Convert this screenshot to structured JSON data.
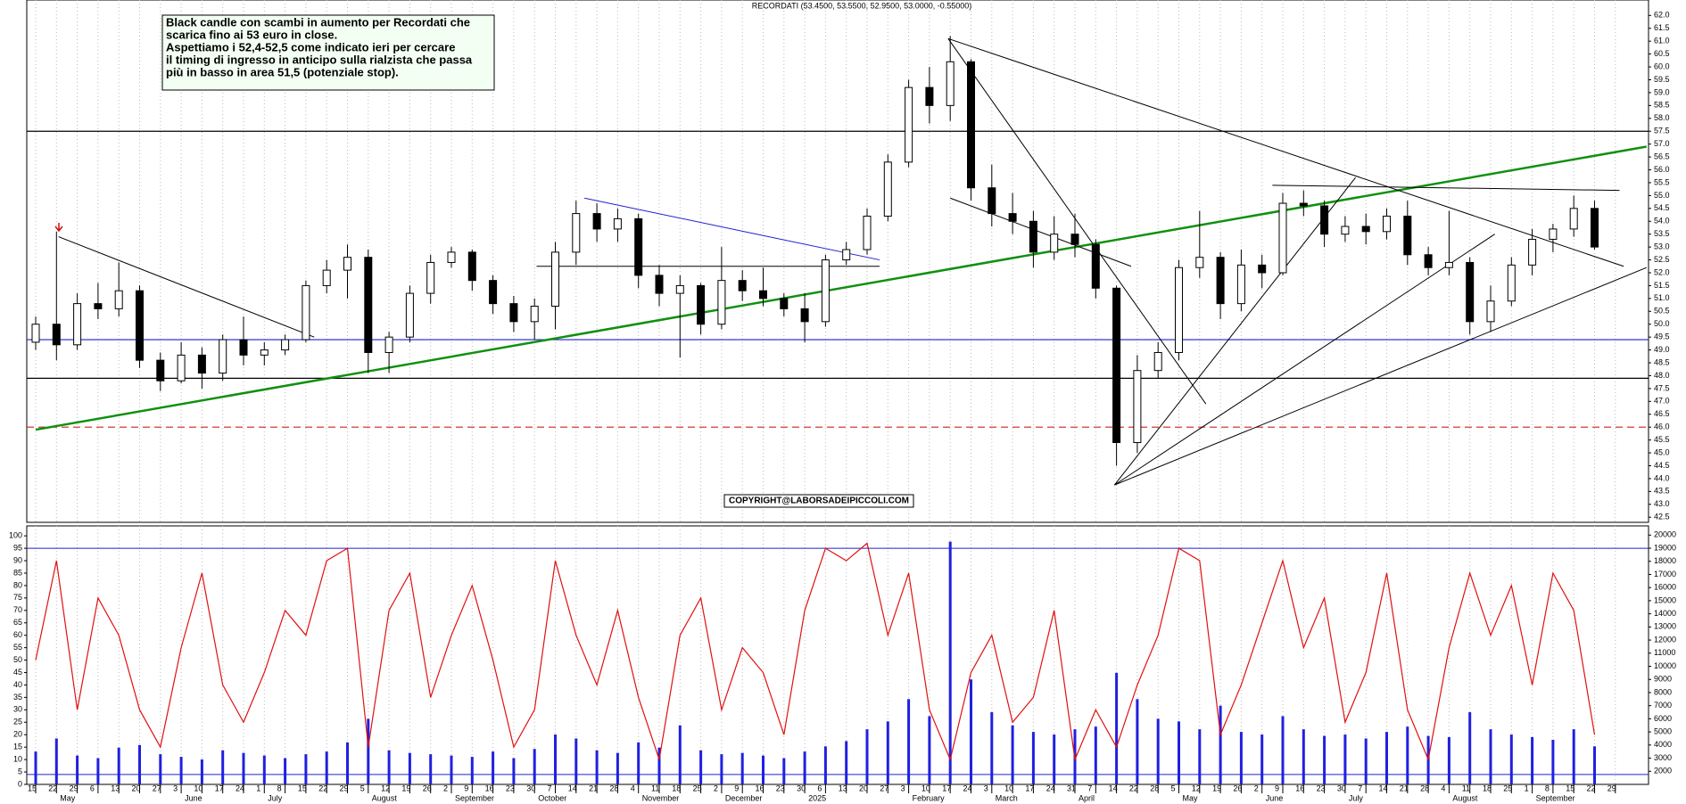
{
  "chart_data": [
    {
      "type": "candlestick",
      "title": "RECORDATI (53.4500, 53.5500, 52.9500, 53.0000, -0.55000)",
      "annotation": [
        "Black candle con scambi in aumento per Recordati che",
        "scarica fino ai 53 euro in close.",
        "Aspettiamo i 52,4-52,5 come indicato ieri per cercare",
        "il timing di ingresso in anticipo sulla rialzista che passa",
        "più in basso in area 51,5 (potenziale stop)."
      ],
      "copyright": "COPYRIGHT@LABORSADEIPICCOLI.COM",
      "categories": [
        "15",
        "22",
        "29",
        "6",
        "13",
        "20",
        "27",
        "3",
        "10",
        "17",
        "24",
        "1",
        "8",
        "15",
        "22",
        "29",
        "5",
        "12",
        "19",
        "26",
        "2",
        "9",
        "16",
        "23",
        "30",
        "7",
        "14",
        "21",
        "28",
        "4",
        "11",
        "18",
        "25",
        "2",
        "9",
        "16",
        "23",
        "30",
        "6",
        "13",
        "20",
        "27",
        "3",
        "10",
        "17",
        "24",
        "3",
        "10",
        "17",
        "24",
        "31",
        "7",
        "14",
        "22",
        "28",
        "5",
        "12",
        "19",
        "26",
        "2",
        "9",
        "16",
        "23",
        "30",
        "7",
        "14",
        "21",
        "28",
        "4",
        "11",
        "18",
        "25",
        "1",
        "8",
        "15",
        "22",
        "29"
      ],
      "months": [
        null,
        "May",
        null,
        null,
        null,
        null,
        null,
        "June",
        null,
        null,
        null,
        "July",
        null,
        null,
        null,
        null,
        "August",
        null,
        null,
        null,
        "September",
        null,
        null,
        null,
        "October",
        null,
        null,
        null,
        null,
        "November",
        null,
        null,
        null,
        "December",
        null,
        null,
        null,
        "2025",
        null,
        null,
        null,
        null,
        "February",
        null,
        null,
        null,
        "March",
        null,
        null,
        null,
        "April",
        null,
        null,
        null,
        null,
        "May",
        null,
        null,
        null,
        "June",
        null,
        null,
        null,
        "July",
        null,
        null,
        null,
        null,
        "August",
        null,
        null,
        null,
        "September",
        null,
        null,
        null,
        null
      ],
      "open": [
        49.3,
        50,
        49.2,
        50.8,
        50.6,
        51.3,
        48.6,
        47.8,
        48.8,
        48.1,
        49.4,
        48.8,
        49.0,
        49.4,
        51.5,
        52.1,
        52.6,
        48.9,
        49.5,
        51.2,
        52.4,
        52.8,
        51.7,
        50.8,
        50.1,
        50.7,
        52.8,
        54.3,
        53.7,
        54.1,
        51.9,
        51.2,
        51.5,
        50.0,
        51.7,
        51.3,
        51.0,
        50.6,
        50.1,
        52.5,
        52.9,
        54.2,
        56.3,
        59.2,
        58.5,
        60.2,
        55.3,
        54.3,
        54.0,
        52.8,
        53.5,
        53.1,
        51.4,
        45.4,
        48.2,
        48.9,
        52.2,
        52.6,
        50.8,
        52.3,
        52.0,
        54.7,
        54.6,
        53.5,
        53.8,
        53.6,
        54.2,
        52.7,
        52.2,
        52.4,
        50.1,
        50.9,
        52.3,
        53.3,
        53.7,
        54.5,
        null
      ],
      "high": [
        50.3,
        53.6,
        51.2,
        51.6,
        52.4,
        51.5,
        48.9,
        49.3,
        49.1,
        49.6,
        50.3,
        49.3,
        49.6,
        51.7,
        52.5,
        53.1,
        52.9,
        49.7,
        51.5,
        52.7,
        53.0,
        52.9,
        51.9,
        51.1,
        51.0,
        53.2,
        54.8,
        54.7,
        54.5,
        54.3,
        52.3,
        51.9,
        51.6,
        53.0,
        52.1,
        52.2,
        51.2,
        51.2,
        52.7,
        53.2,
        54.5,
        56.6,
        59.5,
        60.0,
        61.2,
        60.3,
        56.2,
        55.1,
        54.4,
        54.2,
        54.3,
        53.3,
        51.5,
        48.8,
        49.3,
        52.5,
        54.4,
        52.8,
        52.9,
        52.7,
        55.1,
        55.2,
        54.8,
        54.2,
        54.3,
        54.5,
        54.8,
        53.0,
        54.4,
        52.6,
        51.5,
        52.6,
        53.7,
        53.9,
        55.0,
        54.8,
        null
      ],
      "low": [
        49,
        48.6,
        49,
        50.2,
        50.3,
        48.3,
        47.4,
        47.7,
        47.5,
        47.8,
        48.4,
        48.4,
        48.8,
        49.3,
        51.2,
        51.0,
        48.1,
        48.1,
        49.3,
        50.8,
        52.2,
        51.3,
        50.4,
        49.7,
        49.4,
        49.8,
        52.3,
        53.2,
        53.2,
        51.4,
        50.7,
        48.7,
        49.6,
        49.8,
        50.9,
        50.7,
        50.3,
        49.3,
        49.9,
        52.3,
        52.7,
        54.0,
        56.1,
        57.8,
        57.9,
        54.8,
        53.8,
        53.5,
        52.2,
        52.5,
        52.6,
        51.0,
        44.5,
        45.0,
        47.9,
        48.6,
        51.8,
        50.2,
        50.5,
        51.4,
        51.9,
        54.2,
        53.0,
        53.2,
        53.1,
        53.3,
        52.3,
        51.9,
        51.9,
        49.6,
        49.7,
        50.7,
        51.9,
        52.8,
        53.4,
        52.9,
        null
      ],
      "close": [
        50,
        49.2,
        50.8,
        50.6,
        51.3,
        48.6,
        47.8,
        48.8,
        48.1,
        49.4,
        48.8,
        49.0,
        49.4,
        51.5,
        52.1,
        52.6,
        48.9,
        49.5,
        51.2,
        52.4,
        52.8,
        51.7,
        50.8,
        50.1,
        50.7,
        52.8,
        54.3,
        53.7,
        54.1,
        51.9,
        51.2,
        51.5,
        50.0,
        51.7,
        51.3,
        51.0,
        50.6,
        50.1,
        52.5,
        52.9,
        54.2,
        56.3,
        59.2,
        58.5,
        60.2,
        55.3,
        54.3,
        54.0,
        52.8,
        53.5,
        53.1,
        51.4,
        45.4,
        48.2,
        48.9,
        52.2,
        52.6,
        50.8,
        52.3,
        52.0,
        54.7,
        54.6,
        53.5,
        53.8,
        53.6,
        54.2,
        52.7,
        52.2,
        52.4,
        50.1,
        50.9,
        52.3,
        53.3,
        53.7,
        54.5,
        53.0,
        null
      ],
      "ylim": [
        42.3,
        62.6
      ],
      "yticks": [
        {
          "value": 42.5,
          "label": "42.5"
        },
        {
          "value": 43,
          "label": "43.0"
        },
        {
          "value": 43.5,
          "label": "43.5"
        },
        {
          "value": 44,
          "label": "44.0"
        },
        {
          "value": 44.5,
          "label": "44.5"
        },
        {
          "value": 45,
          "label": "45.0"
        },
        {
          "value": 45.5,
          "label": "45.5"
        },
        {
          "value": 46,
          "label": "46.0"
        },
        {
          "value": 46.5,
          "label": "46.5"
        },
        {
          "value": 47,
          "label": "47.0"
        },
        {
          "value": 47.5,
          "label": "47.5"
        },
        {
          "value": 48,
          "label": "48.0"
        },
        {
          "value": 48.5,
          "label": "48.5"
        },
        {
          "value": 49,
          "label": "49.0"
        },
        {
          "value": 49.5,
          "label": "49.5"
        },
        {
          "value": 50,
          "label": "50.0"
        },
        {
          "value": 50.5,
          "label": "50.5"
        },
        {
          "value": 51,
          "label": "51.0"
        },
        {
          "value": 51.5,
          "label": "51.5"
        },
        {
          "value": 52,
          "label": "52.0"
        },
        {
          "value": 52.5,
          "label": "52.5"
        },
        {
          "value": 53,
          "label": "53.0"
        },
        {
          "value": 53.5,
          "label": "53.5"
        },
        {
          "value": 54,
          "label": "54.0"
        },
        {
          "value": 54.5,
          "label": "54.5"
        },
        {
          "value": 55,
          "label": "55.0"
        },
        {
          "value": 55.5,
          "label": "55.5"
        },
        {
          "value": 56,
          "label": "56.0"
        },
        {
          "value": 56.5,
          "label": "56.5"
        },
        {
          "value": 57,
          "label": "57.0"
        },
        {
          "value": 57.5,
          "label": "57.5"
        },
        {
          "value": 58,
          "label": "58.0"
        },
        {
          "value": 58.5,
          "label": "58.5"
        },
        {
          "value": 59,
          "label": "59.0"
        },
        {
          "value": 59.5,
          "label": "59.5"
        },
        {
          "value": 60,
          "label": "60.0"
        },
        {
          "value": 60.5,
          "label": "60.5"
        },
        {
          "value": 61,
          "label": "61.0"
        },
        {
          "value": 61.5,
          "label": "61.5"
        },
        {
          "value": 62,
          "label": "62.0"
        }
      ],
      "grid": true,
      "hlines": [
        {
          "value": 57.5,
          "color": "#000000"
        },
        {
          "value": 47.9,
          "color": "#000000"
        },
        {
          "value": 49.4,
          "color": "#2020d0"
        },
        {
          "value": 46.0,
          "color": "#d02020",
          "dash": true
        }
      ],
      "trendlines": [
        {
          "points": [
            0,
            45.9,
            77.5,
            56.9
          ],
          "color": "#109010",
          "width": 2.5
        },
        {
          "points": [
            1.1,
            53.4,
            13.4,
            49.5
          ],
          "color": "#000000",
          "width": 1
        },
        {
          "points": [
            26.4,
            54.9,
            40.6,
            52.5
          ],
          "color": "#2020d0",
          "width": 1
        },
        {
          "points": [
            24.1,
            52.25,
            40.6,
            52.25
          ],
          "color": "#000000",
          "width": 1
        },
        {
          "points": [
            43.9,
            61.1,
            76.4,
            52.25
          ],
          "color": "#000000",
          "width": 1
        },
        {
          "points": [
            43.9,
            61.1,
            56.3,
            46.9
          ],
          "color": "#000000",
          "width": 1
        },
        {
          "points": [
            44,
            54.9,
            52.7,
            52.25
          ],
          "color": "#000000",
          "width": 1
        },
        {
          "points": [
            51.9,
            43.75,
            63.5,
            55.7
          ],
          "color": "#000000",
          "width": 1
        },
        {
          "points": [
            51.9,
            43.75,
            70.2,
            53.5
          ],
          "color": "#000000",
          "width": 1
        },
        {
          "points": [
            51.9,
            43.75,
            77.5,
            52.2
          ],
          "color": "#000000",
          "width": 1
        },
        {
          "points": [
            59.5,
            55.4,
            76.2,
            55.2
          ],
          "color": "#000000",
          "width": 1
        }
      ]
    },
    {
      "type": "oscillator-volume",
      "values": [
        50,
        90,
        30,
        75,
        60,
        30,
        15,
        55,
        85,
        40,
        25,
        45,
        70,
        60,
        90,
        95,
        15,
        70,
        85,
        35,
        60,
        80,
        50,
        15,
        30,
        90,
        60,
        40,
        70,
        35,
        10,
        60,
        75,
        30,
        55,
        45,
        20,
        70,
        95,
        90,
        97,
        60,
        85,
        30,
        10,
        45,
        60,
        25,
        35,
        70,
        10,
        30,
        15,
        40,
        60,
        95,
        90,
        20,
        40,
        65,
        90,
        55,
        75,
        25,
        45,
        85,
        30,
        10,
        55,
        85,
        60,
        80,
        40,
        85,
        70,
        20,
        null
      ],
      "color": "#e01010",
      "volume": [
        3500,
        4500,
        3200,
        3000,
        3800,
        4000,
        3300,
        3100,
        2900,
        3600,
        3400,
        3200,
        3000,
        3300,
        3500,
        4200,
        6000,
        3600,
        3400,
        3300,
        3200,
        3100,
        3500,
        3000,
        3700,
        4800,
        4500,
        3600,
        3400,
        4200,
        3800,
        5500,
        3600,
        3300,
        3400,
        3200,
        3000,
        3500,
        3900,
        4300,
        5200,
        5800,
        7500,
        6200,
        19500,
        9000,
        6500,
        5500,
        5000,
        4800,
        5200,
        5400,
        9500,
        7500,
        6000,
        5800,
        5200,
        7000,
        5000,
        4800,
        6200,
        5200,
        4700,
        4800,
        4500,
        5000,
        5400,
        4700,
        4600,
        6500,
        5200,
        4800,
        4600,
        4400,
        5200,
        3900,
        null
      ],
      "volume_color": "#2020e0",
      "ylim": [
        0,
        104
      ],
      "yticks": [
        0,
        5,
        10,
        15,
        20,
        25,
        30,
        35,
        40,
        45,
        50,
        55,
        60,
        65,
        70,
        75,
        80,
        85,
        90,
        95,
        100
      ],
      "y2lim": [
        1000,
        20700
      ],
      "y2ticks": [
        2000,
        3000,
        4000,
        5000,
        6000,
        7000,
        8000,
        9000,
        10000,
        11000,
        12000,
        13000,
        14000,
        15000,
        16000,
        17000,
        18000,
        19000,
        20000
      ],
      "hlines": [
        {
          "value": 95,
          "color": "#2020d0"
        },
        {
          "value": 4,
          "color": "#2020d0"
        }
      ]
    }
  ]
}
